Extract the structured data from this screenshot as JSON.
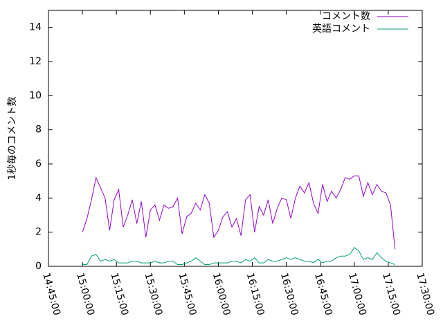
{
  "chart_data": {
    "type": "line",
    "y_label": "1秒毎のコメント数",
    "x": [
      "15:00:00",
      "15:02:00",
      "15:04:00",
      "15:06:00",
      "15:08:00",
      "15:10:00",
      "15:12:00",
      "15:14:00",
      "15:16:00",
      "15:18:00",
      "15:20:00",
      "15:22:00",
      "15:24:00",
      "15:26:00",
      "15:28:00",
      "15:30:00",
      "15:32:00",
      "15:34:00",
      "15:36:00",
      "15:38:00",
      "15:40:00",
      "15:42:00",
      "15:44:00",
      "15:46:00",
      "15:48:00",
      "15:50:00",
      "15:52:00",
      "15:54:00",
      "15:56:00",
      "15:58:00",
      "16:00:00",
      "16:02:00",
      "16:04:00",
      "16:06:00",
      "16:08:00",
      "16:10:00",
      "16:12:00",
      "16:14:00",
      "16:16:00",
      "16:18:00",
      "16:20:00",
      "16:22:00",
      "16:24:00",
      "16:26:00",
      "16:28:00",
      "16:30:00",
      "16:32:00",
      "16:34:00",
      "16:36:00",
      "16:38:00",
      "16:40:00",
      "16:42:00",
      "16:44:00",
      "16:46:00",
      "16:48:00",
      "16:50:00",
      "16:52:00",
      "16:54:00",
      "16:56:00",
      "16:58:00",
      "17:00:00",
      "17:02:00",
      "17:04:00",
      "17:06:00",
      "17:08:00",
      "17:10:00",
      "17:12:00",
      "17:14:00",
      "17:16:00",
      "17:18:00"
    ],
    "series": [
      {
        "name": "コメント数",
        "color": "#9400d3",
        "values": [
          2.0,
          2.8,
          3.9,
          5.2,
          4.6,
          4.0,
          2.1,
          3.9,
          4.5,
          2.3,
          3.0,
          3.9,
          2.5,
          3.8,
          1.7,
          3.3,
          3.6,
          2.7,
          3.6,
          3.4,
          3.5,
          4.0,
          1.9,
          2.9,
          3.1,
          3.7,
          3.3,
          4.2,
          3.7,
          1.7,
          2.1,
          2.9,
          3.2,
          2.3,
          2.8,
          1.8,
          3.9,
          4.2,
          2.0,
          3.5,
          3.0,
          3.9,
          2.5,
          3.4,
          4.0,
          3.9,
          2.8,
          4.0,
          4.7,
          4.3,
          4.9,
          3.7,
          3.1,
          4.8,
          3.8,
          4.4,
          4.0,
          4.5,
          5.2,
          5.1,
          5.3,
          5.3,
          4.1,
          4.9,
          4.2,
          4.8,
          4.4,
          4.3,
          3.6,
          1.0
        ]
      },
      {
        "name": "英語コメント",
        "color": "#009e73",
        "values": [
          0.1,
          0.1,
          0.6,
          0.7,
          0.3,
          0.4,
          0.3,
          0.4,
          0.2,
          0.2,
          0.2,
          0.3,
          0.3,
          0.2,
          0.2,
          0.2,
          0.3,
          0.2,
          0.2,
          0.3,
          0.3,
          0.1,
          0.1,
          0.2,
          0.3,
          0.5,
          0.3,
          0.1,
          0.1,
          0.2,
          0.2,
          0.2,
          0.2,
          0.3,
          0.3,
          0.2,
          0.4,
          0.3,
          0.5,
          0.2,
          0.2,
          0.4,
          0.3,
          0.3,
          0.4,
          0.5,
          0.4,
          0.5,
          0.4,
          0.3,
          0.3,
          0.2,
          0.4,
          0.2,
          0.3,
          0.3,
          0.5,
          0.6,
          0.6,
          0.7,
          1.1,
          0.9,
          0.4,
          0.5,
          0.4,
          0.8,
          0.5,
          0.3,
          0.2,
          0.1
        ]
      }
    ],
    "xlim": [
      "14:45:00",
      "17:30:00"
    ],
    "xticks": [
      "14:45:00",
      "15:00:00",
      "15:15:00",
      "15:30:00",
      "15:45:00",
      "16:00:00",
      "16:15:00",
      "16:30:00",
      "16:45:00",
      "17:00:00",
      "17:15:00",
      "17:30:00"
    ],
    "ylim": [
      0,
      15
    ],
    "yticks": [
      0,
      2,
      4,
      6,
      8,
      10,
      12,
      14
    ],
    "legend": "top-right"
  }
}
